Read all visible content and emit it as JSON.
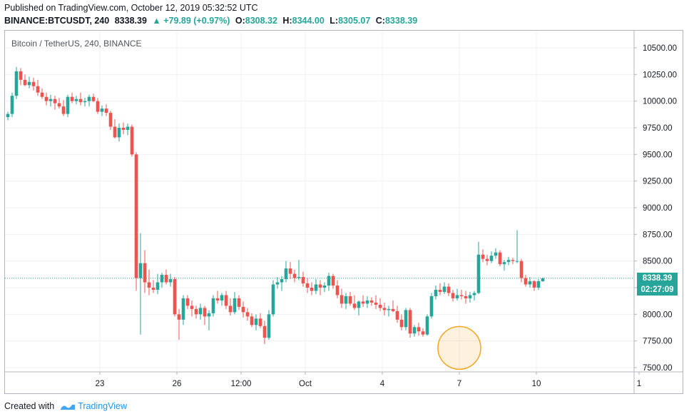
{
  "header": {
    "published": "Published on TradingView.com, October 12, 2019 05:32:52 UTC",
    "symbol": "BINANCE:BTCUSDT, 240",
    "last": "8338.39",
    "change": "▲ +79.89 (+0.97%)",
    "o_label": "O:",
    "o_value": "8308.32",
    "h_label": "H:",
    "h_value": "8344.00",
    "l_label": "L:",
    "l_value": "8305.07",
    "c_label": "C:",
    "c_value": "8338.39"
  },
  "pane_title": "Bitcoin / TetherUS, 240, BINANCE",
  "price_tag": {
    "price": "8338.39",
    "countdown": "02:27:09"
  },
  "footer": {
    "created_with": "Created with",
    "brand": "TradingView"
  },
  "colors": {
    "up": "#26a69a",
    "down": "#ef5350",
    "accent": "#2196f3",
    "highlight": "#f5a623"
  },
  "chart_data": {
    "type": "candlestick",
    "title": "Bitcoin / TetherUS, 240, BINANCE",
    "ylim": [
      7450,
      10600
    ],
    "y_ticks": [
      7500,
      7750,
      8000,
      8250,
      8500,
      8750,
      9000,
      9250,
      9500,
      9750,
      10000,
      10250,
      10500
    ],
    "y_tick_labels": [
      "7500.00",
      "7750.00",
      "8000.00",
      "8250.00",
      "8500.00",
      "8750.00",
      "9000.00",
      "9250.00",
      "9500.00",
      "9750.00",
      "10000.00",
      "10250.00",
      "10500.00"
    ],
    "x_ticks": [
      {
        "label": "23",
        "bar": 21.5
      },
      {
        "label": "26",
        "bar": 39.5
      },
      {
        "label": "12:00",
        "bar": 54.5
      },
      {
        "label": "Oct",
        "bar": 69.5
      },
      {
        "label": "4",
        "bar": 87.5
      },
      {
        "label": "7",
        "bar": 105.5
      },
      {
        "label": "10",
        "bar": 123.5
      },
      {
        "label": "1",
        "bar": 147.5
      }
    ],
    "last_price": 8338.39,
    "highlight_circle": {
      "bar": 105.5,
      "price": 7685
    },
    "candles": [
      [
        9850,
        9900,
        9820,
        9880
      ],
      [
        9880,
        10080,
        9850,
        10050
      ],
      [
        10050,
        10320,
        10020,
        10280
      ],
      [
        10280,
        10310,
        10150,
        10200
      ],
      [
        10200,
        10250,
        10140,
        10150
      ],
      [
        10150,
        10230,
        10120,
        10180
      ],
      [
        10180,
        10220,
        10100,
        10140
      ],
      [
        10140,
        10200,
        10050,
        10080
      ],
      [
        10080,
        10120,
        10020,
        10040
      ],
      [
        10040,
        10080,
        9960,
        10000
      ],
      [
        10000,
        10060,
        9950,
        10020
      ],
      [
        10020,
        10050,
        9920,
        9980
      ],
      [
        9980,
        10030,
        9930,
        9950
      ],
      [
        9950,
        10010,
        9860,
        9880
      ],
      [
        9880,
        10060,
        9850,
        10040
      ],
      [
        10040,
        10080,
        9980,
        10000
      ],
      [
        10000,
        10050,
        9970,
        10020
      ],
      [
        10020,
        10080,
        9960,
        9990
      ],
      [
        9990,
        10030,
        9950,
        10000
      ],
      [
        10000,
        10060,
        9950,
        10040
      ],
      [
        10040,
        10070,
        9990,
        10000
      ],
      [
        10000,
        10030,
        9880,
        9900
      ],
      [
        9900,
        9960,
        9860,
        9930
      ],
      [
        9930,
        9970,
        9860,
        9890
      ],
      [
        9890,
        9910,
        9730,
        9760
      ],
      [
        9760,
        9830,
        9650,
        9660
      ],
      [
        9660,
        9790,
        9620,
        9750
      ],
      [
        9750,
        9800,
        9690,
        9730
      ],
      [
        9730,
        9790,
        9680,
        9760
      ],
      [
        9760,
        9780,
        9480,
        9500
      ],
      [
        9500,
        9520,
        8220,
        8340
      ],
      [
        8340,
        8760,
        7810,
        8480
      ],
      [
        8480,
        8600,
        8200,
        8300
      ],
      [
        8300,
        8420,
        8180,
        8250
      ],
      [
        8250,
        8320,
        8200,
        8230
      ],
      [
        8230,
        8380,
        8190,
        8300
      ],
      [
        8300,
        8390,
        8250,
        8370
      ],
      [
        8370,
        8420,
        8280,
        8300
      ],
      [
        8300,
        8380,
        8260,
        8330
      ],
      [
        8330,
        8350,
        7980,
        8000
      ],
      [
        8000,
        8050,
        7760,
        7950
      ],
      [
        7950,
        8180,
        7900,
        8150
      ],
      [
        8150,
        8180,
        8050,
        8080
      ],
      [
        8080,
        8130,
        7980,
        8050
      ],
      [
        8050,
        8080,
        7960,
        8000
      ],
      [
        8000,
        8100,
        7950,
        8060
      ],
      [
        8060,
        8080,
        7900,
        7980
      ],
      [
        7980,
        8040,
        7850,
        8010
      ],
      [
        8010,
        8180,
        7980,
        8150
      ],
      [
        8150,
        8220,
        8100,
        8130
      ],
      [
        8130,
        8200,
        8080,
        8180
      ],
      [
        8180,
        8220,
        8050,
        8080
      ],
      [
        8080,
        8150,
        7990,
        8020
      ],
      [
        8020,
        8210,
        8000,
        8150
      ],
      [
        8150,
        8180,
        8040,
        8070
      ],
      [
        8070,
        8120,
        7970,
        8020
      ],
      [
        8020,
        8060,
        7940,
        7980
      ],
      [
        7980,
        8010,
        7880,
        7900
      ],
      [
        7900,
        8000,
        7850,
        7960
      ],
      [
        7960,
        8010,
        7870,
        7890
      ],
      [
        7890,
        7940,
        7720,
        7780
      ],
      [
        7780,
        8040,
        7760,
        8000
      ],
      [
        8000,
        8320,
        7980,
        8280
      ],
      [
        8280,
        8350,
        8240,
        8300
      ],
      [
        8300,
        8360,
        8220,
        8330
      ],
      [
        8330,
        8500,
        8300,
        8430
      ],
      [
        8430,
        8490,
        8330,
        8380
      ],
      [
        8380,
        8420,
        8300,
        8340
      ],
      [
        8340,
        8510,
        8320,
        8350
      ],
      [
        8350,
        8400,
        8260,
        8290
      ],
      [
        8290,
        8340,
        8200,
        8250
      ],
      [
        8250,
        8300,
        8180,
        8220
      ],
      [
        8220,
        8330,
        8190,
        8280
      ],
      [
        8280,
        8320,
        8180,
        8250
      ],
      [
        8250,
        8300,
        8210,
        8270
      ],
      [
        8270,
        8390,
        8220,
        8360
      ],
      [
        8360,
        8380,
        8240,
        8270
      ],
      [
        8270,
        8320,
        8150,
        8180
      ],
      [
        8180,
        8240,
        8060,
        8100
      ],
      [
        8100,
        8200,
        8050,
        8170
      ],
      [
        8170,
        8210,
        8080,
        8100
      ],
      [
        8100,
        8180,
        8040,
        8060
      ],
      [
        8060,
        8130,
        7990,
        8120
      ],
      [
        8120,
        8180,
        8070,
        8100
      ],
      [
        8100,
        8170,
        8060,
        8130
      ],
      [
        8130,
        8160,
        8080,
        8110
      ],
      [
        8110,
        8180,
        8050,
        8090
      ],
      [
        8090,
        8150,
        8030,
        8060
      ],
      [
        8060,
        8110,
        7990,
        8040
      ],
      [
        8040,
        8080,
        7980,
        8050
      ],
      [
        8050,
        8130,
        8020,
        8030
      ],
      [
        8030,
        8080,
        7920,
        7950
      ],
      [
        7950,
        8000,
        7850,
        7880
      ],
      [
        7880,
        8060,
        7850,
        8040
      ],
      [
        8040,
        8060,
        7780,
        7820
      ],
      [
        7820,
        7900,
        7790,
        7880
      ],
      [
        7880,
        7920,
        7800,
        7840
      ],
      [
        7840,
        7870,
        7790,
        7810
      ],
      [
        7810,
        8000,
        7800,
        7980
      ],
      [
        7980,
        8200,
        7960,
        8170
      ],
      [
        8170,
        8270,
        8140,
        8230
      ],
      [
        8230,
        8290,
        8180,
        8210
      ],
      [
        8210,
        8300,
        8190,
        8260
      ],
      [
        8260,
        8290,
        8170,
        8200
      ],
      [
        8200,
        8230,
        8120,
        8150
      ],
      [
        8150,
        8240,
        8130,
        8180
      ],
      [
        8180,
        8230,
        8140,
        8170
      ],
      [
        8170,
        8220,
        8100,
        8150
      ],
      [
        8150,
        8210,
        8110,
        8180
      ],
      [
        8180,
        8220,
        8130,
        8200
      ],
      [
        8200,
        8680,
        8190,
        8560
      ],
      [
        8560,
        8610,
        8490,
        8520
      ],
      [
        8520,
        8560,
        8460,
        8500
      ],
      [
        8500,
        8590,
        8480,
        8550
      ],
      [
        8550,
        8620,
        8520,
        8580
      ],
      [
        8580,
        8600,
        8450,
        8470
      ],
      [
        8470,
        8510,
        8410,
        8490
      ],
      [
        8490,
        8540,
        8460,
        8510
      ],
      [
        8510,
        8530,
        8470,
        8500
      ],
      [
        8500,
        8790,
        8480,
        8500
      ],
      [
        8500,
        8520,
        8300,
        8340
      ],
      [
        8340,
        8370,
        8260,
        8280
      ],
      [
        8280,
        8350,
        8250,
        8310
      ],
      [
        8310,
        8320,
        8220,
        8250
      ],
      [
        8250,
        8330,
        8230,
        8310
      ],
      [
        8310,
        8344,
        8305,
        8338
      ]
    ]
  }
}
